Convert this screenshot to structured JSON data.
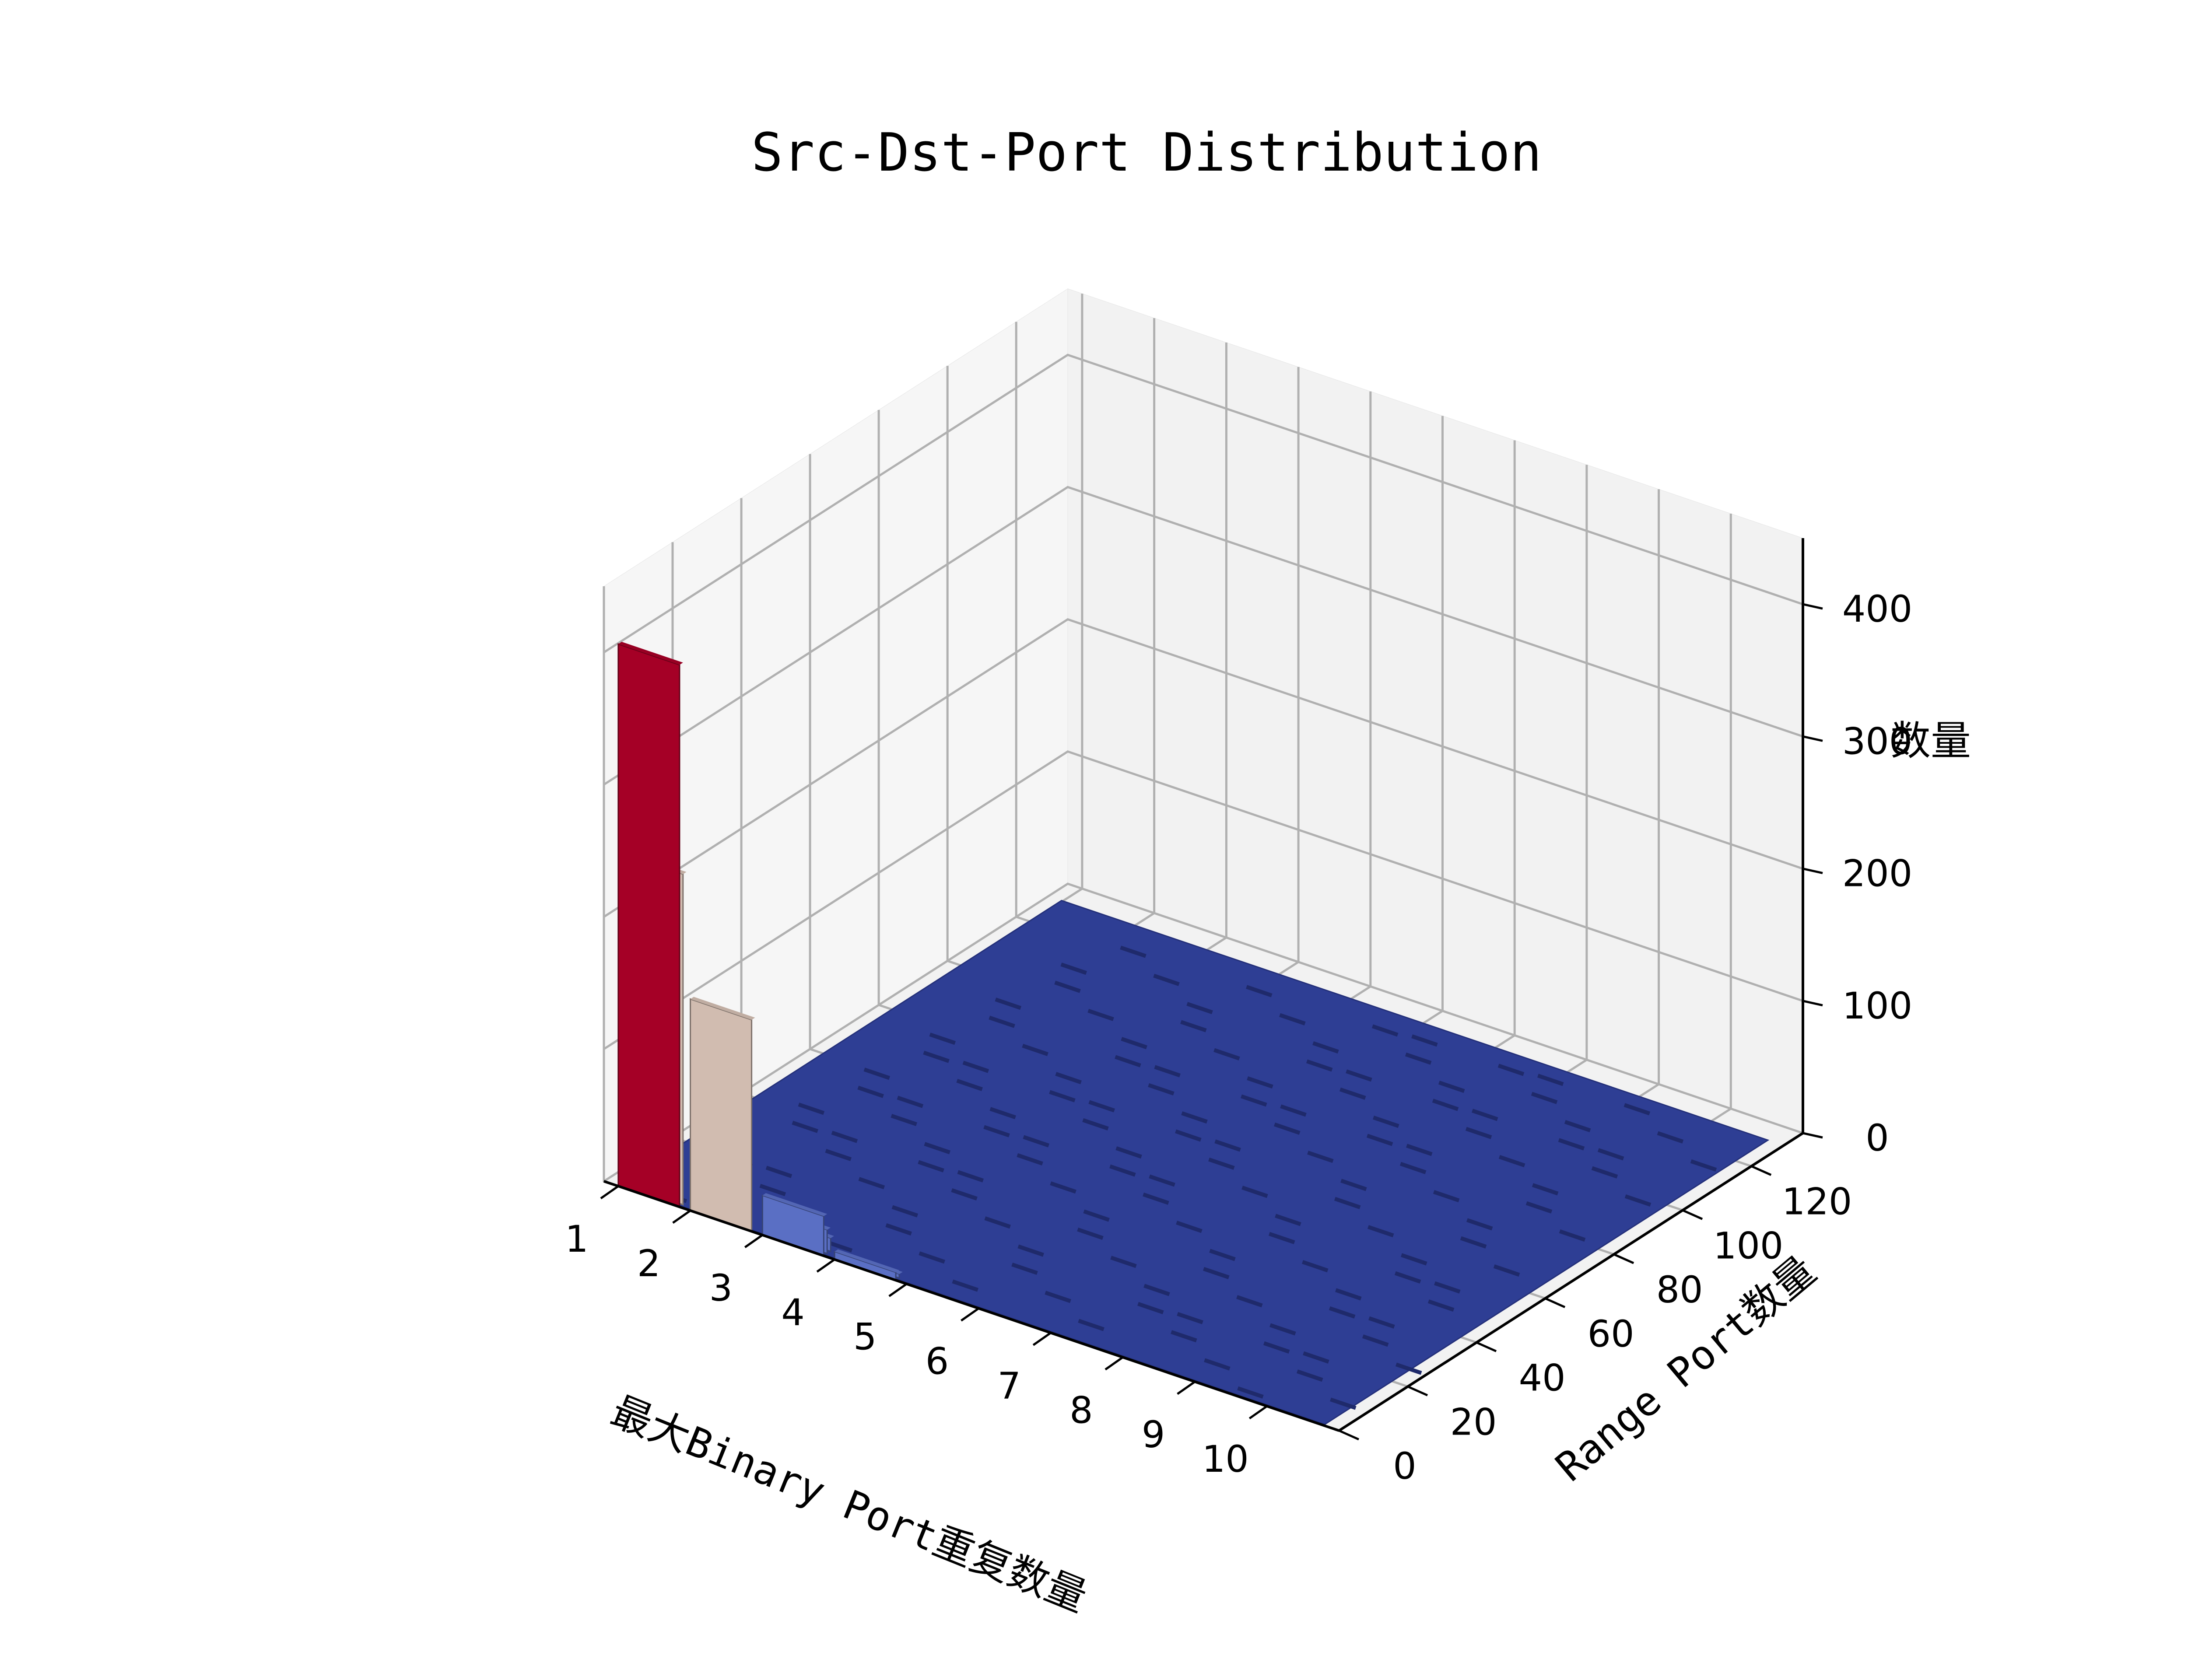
{
  "chart_data": {
    "type": "bar3d",
    "title": "Src-Dst-Port Distribution",
    "xlabel": "最大Binary Port重复数量",
    "ylabel": "Range Port数量",
    "zlabel": "数量",
    "x_ticks": [
      "1",
      "2",
      "3",
      "4",
      "5",
      "6",
      "7",
      "8",
      "9",
      "10"
    ],
    "y_ticks": [
      "0",
      "20",
      "40",
      "60",
      "80",
      "100",
      "120"
    ],
    "z_ticks": [
      "0",
      "100",
      "200",
      "300",
      "400"
    ],
    "xlim": [
      0.8,
      11
    ],
    "ylim": [
      0,
      135
    ],
    "zlim": [
      0,
      450
    ],
    "grid": true,
    "colors": {
      "high": "#a50026",
      "mid": "#d1bcb0",
      "low": "#2e3e94",
      "pane": "#f2f2f2",
      "grid": "#b0b0b0"
    },
    "bars": [
      {
        "x": 1,
        "y": 0,
        "z": 410
      },
      {
        "x": 1,
        "y": 1,
        "z": 250
      },
      {
        "x": 2,
        "y": 0,
        "z": 160
      },
      {
        "x": 3,
        "y": 0,
        "z": 30
      },
      {
        "x": 3,
        "y": 1,
        "z": 18
      },
      {
        "x": 3,
        "y": 2,
        "z": 10
      },
      {
        "x": 4,
        "y": 0,
        "z": 6
      },
      {
        "x": 4,
        "y": 1,
        "z": 3
      }
    ],
    "floor_value": 1
  }
}
